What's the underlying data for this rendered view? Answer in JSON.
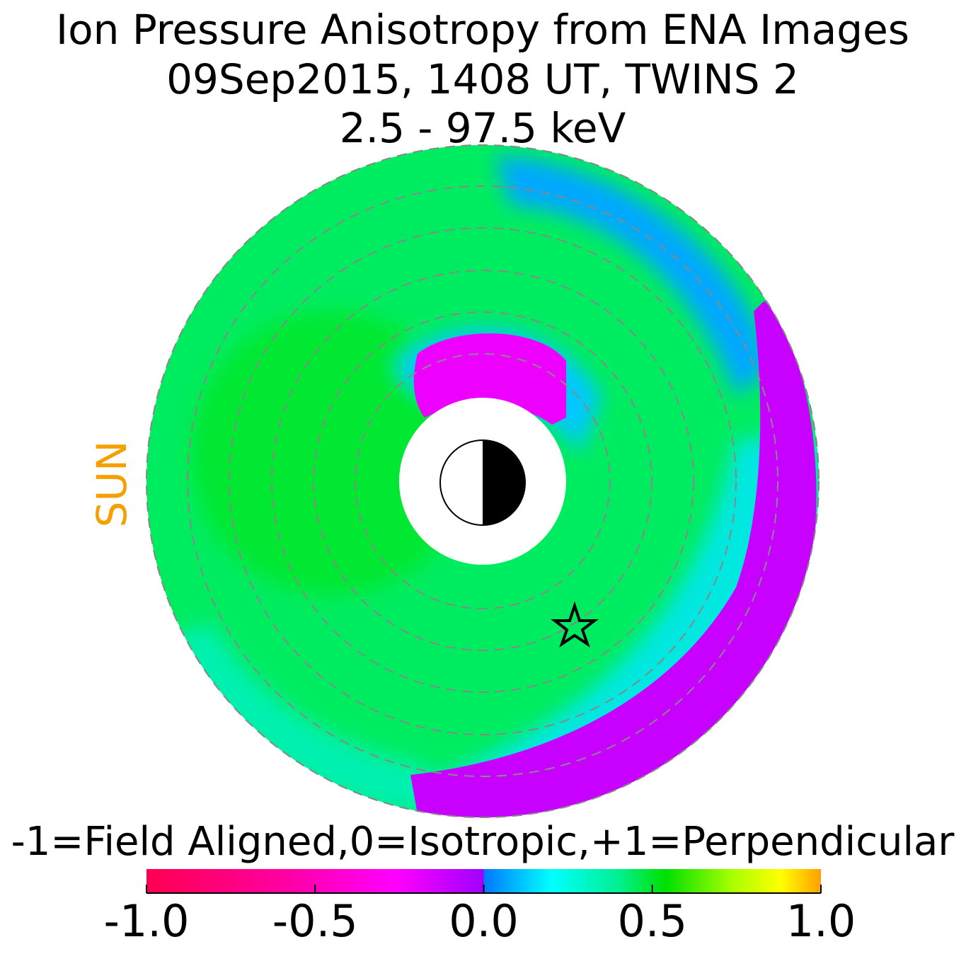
{
  "chart_data": {
    "type": "polar-map",
    "title": [
      "Ion Pressure Anisotropy from  ENA Images",
      "09Sep2015, 1408 UT,  TWINS 2",
      "2.5 - 97.5 keV"
    ],
    "sun_label": "SUN",
    "colorbar_label": "-1=Field Aligned,0=Isotropic,+1=Perpendicular",
    "xlim": [
      -1,
      1
    ],
    "xticks": [
      {
        "value": -1,
        "label": "-1.0"
      },
      {
        "value": -0.5,
        "label": "-0.5"
      },
      {
        "value": 0,
        "label": "0.0"
      },
      {
        "value": 0.5,
        "label": "0.5"
      },
      {
        "value": 1,
        "label": "1.0"
      }
    ]
  }
}
